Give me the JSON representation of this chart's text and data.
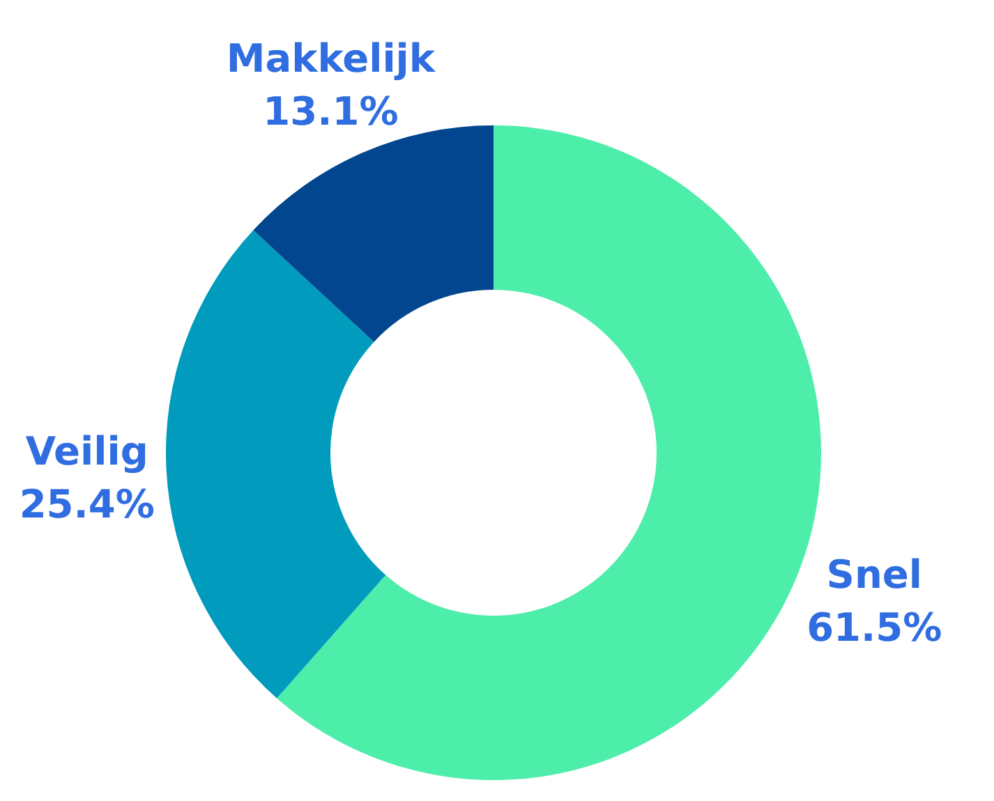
{
  "chart_data": {
    "type": "donut",
    "categories": [
      "Snel",
      "Veilig",
      "Makkelijk"
    ],
    "values": [
      61.5,
      25.4,
      13.1
    ],
    "colors": [
      "#4dedaa",
      "#009bbd",
      "#02468f"
    ],
    "value_labels": [
      "61.5%",
      "25.4%",
      "13.1%"
    ]
  }
}
